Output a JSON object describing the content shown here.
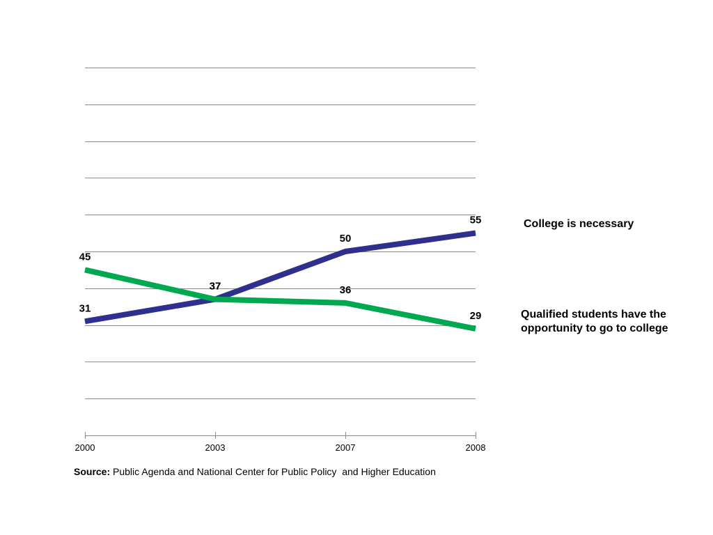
{
  "chart_data": {
    "type": "line",
    "x": [
      "2000",
      "2003",
      "2007",
      "2008"
    ],
    "ylim": [
      0,
      100
    ],
    "grid": true,
    "series": [
      {
        "name": "College is necessary",
        "color": "#2f2f8e",
        "values": [
          31,
          37,
          50,
          55
        ]
      },
      {
        "name": "Qualified students have the opportunity to go to college",
        "color": "#00a84f",
        "values": [
          45,
          37,
          36,
          29
        ]
      }
    ]
  },
  "source": {
    "label": "Source:",
    "text": " Public Agenda and National Center for Public Policy  and Higher Education"
  }
}
